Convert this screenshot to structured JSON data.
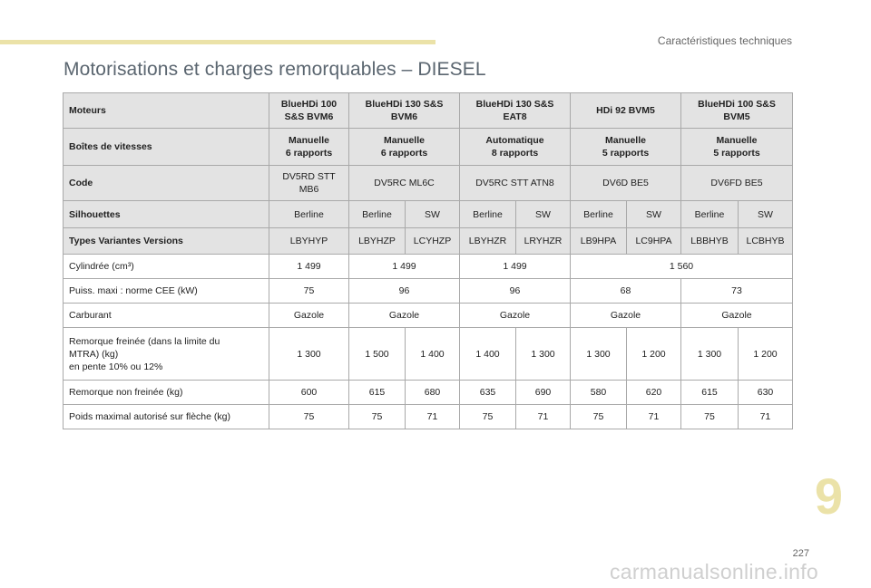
{
  "header": {
    "section": "Caractéristiques techniques"
  },
  "title": "Motorisations et charges remorquables – DIESEL",
  "table": {
    "engines_label": "Moteurs",
    "engines": [
      "BlueHDi 100\nS&S BVM6",
      "BlueHDi 130 S&S\nBVM6",
      "BlueHDi 130 S&S\nEAT8",
      "HDi 92 BVM5",
      "BlueHDi 100 S&S\nBVM5"
    ],
    "gearbox_label": "Boîtes de vitesses",
    "gearboxes": [
      "Manuelle\n6 rapports",
      "Manuelle\n6 rapports",
      "Automatique\n8 rapports",
      "Manuelle\n5 rapports",
      "Manuelle\n5 rapports"
    ],
    "code_label": "Code",
    "codes": [
      "DV5RD STT\nMB6",
      "DV5RC ML6C",
      "DV5RC STT ATN8",
      "DV6D BE5",
      "DV6FD BE5"
    ],
    "bodies_label": "Silhouettes",
    "bodies": [
      "Berline",
      "Berline",
      "SW",
      "Berline",
      "SW",
      "Berline",
      "SW",
      "Berline",
      "SW"
    ],
    "versions_label": "Types Variantes Versions",
    "versions": [
      "LBYHYP",
      "LBYHZP",
      "LCYHZP",
      "LBYHZR",
      "LRYHZR",
      "LB9HPA",
      "LC9HPA",
      "LBBHYB",
      "LCBHYB"
    ],
    "displacement_label": "Cylindrée (cm³)",
    "displacement": [
      "1 499",
      "1 499",
      "1 499",
      "1 560"
    ],
    "power_label": "Puiss. maxi : norme CEE (kW)",
    "power": [
      "75",
      "96",
      "96",
      "68",
      "73"
    ],
    "fuel_label": "Carburant",
    "fuel": [
      "Gazole",
      "Gazole",
      "Gazole",
      "Gazole",
      "Gazole"
    ],
    "braked_label": "Remorque freinée (dans la limite du\nMTRA) (kg)\nen pente 10% ou 12%",
    "braked": [
      "1 300",
      "1 500",
      "1 400",
      "1 400",
      "1 300",
      "1 300",
      "1 200",
      "1 300",
      "1 200"
    ],
    "unbraked_label": "Remorque non freinée (kg)",
    "unbraked": [
      "600",
      "615",
      "680",
      "635",
      "690",
      "580",
      "620",
      "615",
      "630"
    ],
    "nose_label": "Poids maximal autorisé sur flèche (kg)",
    "nose": [
      "75",
      "75",
      "71",
      "75",
      "71",
      "75",
      "71",
      "75",
      "71"
    ]
  },
  "chapter": "9",
  "page_number": "227",
  "watermark": "carmanualsonline.info",
  "colors": {
    "accent": "#ebe2a8",
    "header_bg": "#e3e3e3",
    "title": "#5b6670"
  }
}
